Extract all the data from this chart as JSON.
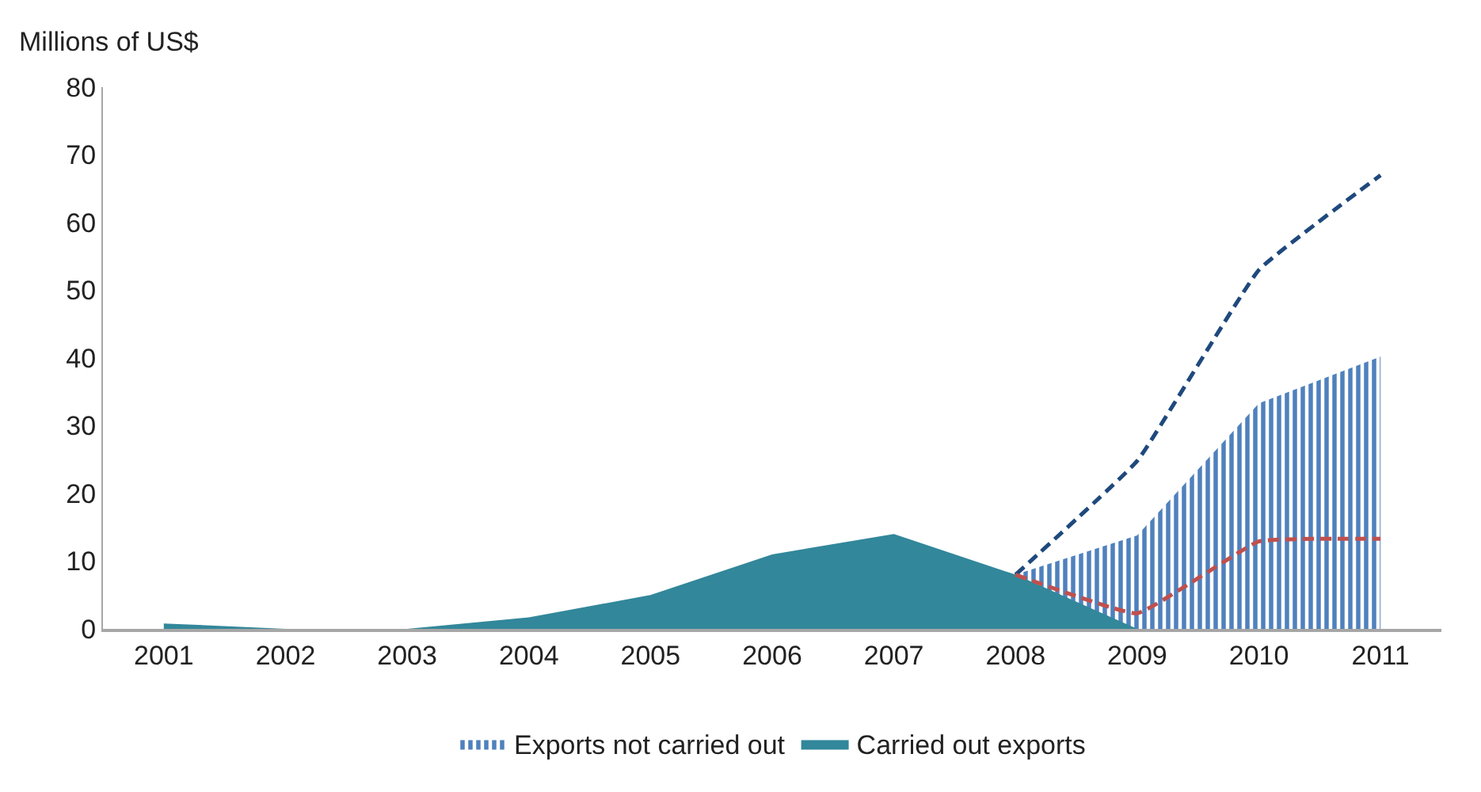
{
  "chart_data": {
    "type": "area",
    "ylabel": "Millions of US$",
    "categories": [
      "2001",
      "2002",
      "2003",
      "2004",
      "2005",
      "2006",
      "2007",
      "2008",
      "2009",
      "2010",
      "2011"
    ],
    "series": [
      {
        "name": "Exports not carried out",
        "color": "#4f81bd",
        "values": [
          null,
          null,
          null,
          null,
          null,
          null,
          null,
          8,
          13.8,
          33.3,
          40.2
        ]
      },
      {
        "name": "Carried out exports",
        "color": "#32879a",
        "values": [
          0.8,
          0,
          0,
          1.7,
          5,
          11,
          14,
          8,
          0,
          null,
          null
        ]
      },
      {
        "type": "line",
        "line_style": "dashed",
        "color": "#1f497d",
        "values": [
          null,
          null,
          null,
          null,
          null,
          null,
          null,
          8,
          24.8,
          53,
          67
        ]
      },
      {
        "type": "line",
        "line_style": "dashed",
        "color": "#c0504d",
        "values": [
          null,
          null,
          null,
          null,
          null,
          null,
          null,
          8,
          2.3,
          12.9,
          13.3
        ]
      }
    ],
    "ylim": [
      0,
      80
    ],
    "yticks": [
      0,
      10,
      20,
      30,
      40,
      50,
      60,
      70,
      80
    ],
    "grid": false,
    "legend": "bottom",
    "marker": "none"
  }
}
